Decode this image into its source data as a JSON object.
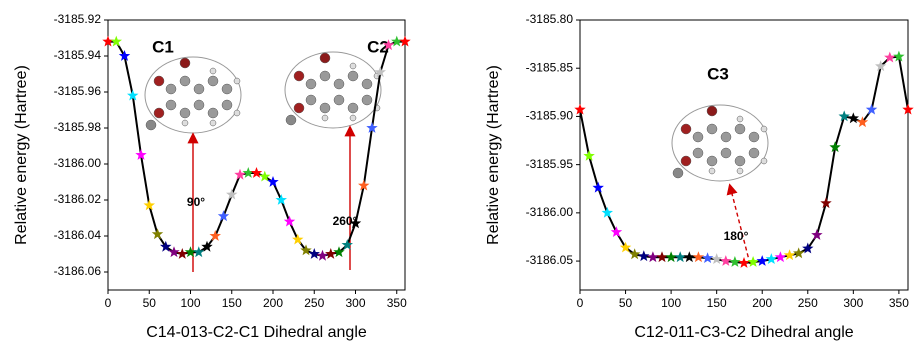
{
  "chart_data": [
    {
      "type": "line",
      "x_label": "C14-013-C2-C1 Dihedral angle",
      "y_label": "Relative energy (Hartree)",
      "x": [
        0,
        10,
        20,
        30,
        40,
        50,
        60,
        70,
        80,
        90,
        100,
        110,
        120,
        130,
        140,
        150,
        160,
        170,
        180,
        190,
        200,
        210,
        220,
        230,
        240,
        250,
        260,
        270,
        280,
        290,
        300,
        310,
        320,
        330,
        340,
        350,
        360
      ],
      "values": [
        -3185.932,
        -3185.932,
        -3185.94,
        -3185.962,
        -3185.995,
        -3186.023,
        -3186.039,
        -3186.046,
        -3186.049,
        -3186.05,
        -3186.049,
        -3186.049,
        -3186.046,
        -3186.04,
        -3186.029,
        -3186.017,
        -3186.006,
        -3186.005,
        -3186.005,
        -3186.007,
        -3186.01,
        -3186.02,
        -3186.032,
        -3186.042,
        -3186.048,
        -3186.05,
        -3186.051,
        -3186.05,
        -3186.049,
        -3186.045,
        -3186.033,
        -3186.012,
        -3185.98,
        -3185.949,
        -3185.934,
        -3185.932,
        -3185.932
      ],
      "line_color": "#000000",
      "marker_palette": [
        "#ff0000",
        "#80ff00",
        "#0000ff",
        "#00e0ff",
        "#ff00ff",
        "#ffd000",
        "#808000",
        "#000080",
        "#800080",
        "#800000",
        "#008000",
        "#008080",
        "#000000",
        "#ff6020",
        "#4060ff",
        "#c0c0c0",
        "#ff40a0",
        "#30c030"
      ],
      "xlim": [
        0,
        360
      ],
      "xticks": [
        0,
        50,
        100,
        150,
        200,
        250,
        300,
        350
      ],
      "ylim": [
        -3186.07,
        -3185.92
      ],
      "yticks": [
        -3185.92,
        -3185.94,
        -3185.96,
        -3185.98,
        {
          "value": -3186,
          "label": "-3186.00"
        },
        -3186.02,
        -3186.04,
        -3186.06
      ],
      "annotations": [
        "C1",
        "C2",
        "90°",
        "260°"
      ]
    },
    {
      "type": "line",
      "x_label": "C12-011-C3-C2 Dihedral angle",
      "y_label": "Relative energy (Hartree)",
      "x": [
        0,
        10,
        20,
        30,
        40,
        50,
        60,
        70,
        80,
        90,
        100,
        110,
        120,
        130,
        140,
        150,
        160,
        170,
        180,
        190,
        200,
        210,
        220,
        230,
        240,
        250,
        260,
        270,
        280,
        290,
        300,
        310,
        320,
        330,
        340,
        350,
        360
      ],
      "values": [
        -3185.893,
        -3185.941,
        -3185.974,
        -3186.0,
        -3186.02,
        -3186.036,
        -3186.043,
        -3186.045,
        -3186.046,
        -3186.046,
        -3186.046,
        -3186.046,
        -3186.046,
        -3186.046,
        -3186.047,
        -3186.048,
        -3186.05,
        -3186.051,
        -3186.052,
        -3186.051,
        -3186.05,
        -3186.048,
        -3186.046,
        -3186.044,
        -3186.042,
        -3186.037,
        -3186.023,
        -3185.99,
        -3185.932,
        -3185.9,
        -3185.902,
        -3185.906,
        -3185.893,
        -3185.848,
        -3185.839,
        -3185.838,
        -3185.893
      ],
      "line_color": "#000000",
      "marker_palette": [
        "#ff0000",
        "#80ff00",
        "#0000ff",
        "#00e0ff",
        "#ff00ff",
        "#ffd000",
        "#808000",
        "#000080",
        "#800080",
        "#800000",
        "#008000",
        "#008080",
        "#000000",
        "#ff6020",
        "#4060ff",
        "#c0c0c0",
        "#ff40a0",
        "#30c030"
      ],
      "xlim": [
        0,
        360
      ],
      "xticks": [
        0,
        50,
        100,
        150,
        200,
        250,
        300,
        350
      ],
      "ylim": [
        -3186.08,
        -3185.8
      ],
      "yticks": [
        {
          "value": -3185.8,
          "label": "-3185.80"
        },
        -3185.85,
        {
          "value": -3185.9,
          "label": "-3185.90"
        },
        -3185.95,
        {
          "value": -3186,
          "label": "-3186.00"
        },
        -3186.05
      ],
      "annotations": [
        "C3",
        "180°"
      ]
    }
  ]
}
